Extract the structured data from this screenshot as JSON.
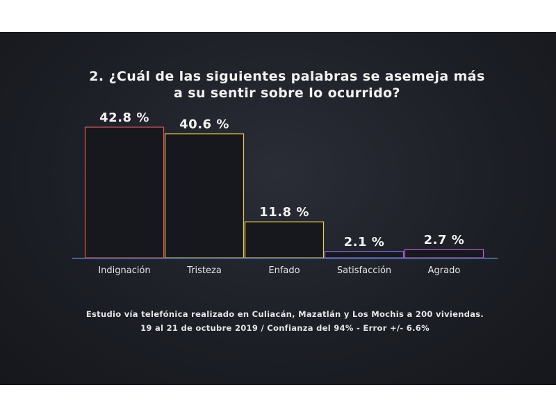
{
  "chart_data": {
    "type": "bar",
    "title_line1": "2. ¿Cuál de las siguientes palabras se asemeja más",
    "title_line2": "a su sentir sobre lo ocurrido?",
    "categories": [
      "Indignación",
      "Tristeza",
      "Enfado",
      "Satisfacción",
      "Agrado"
    ],
    "values": [
      42.8,
      40.6,
      11.8,
      2.1,
      2.7
    ],
    "value_labels": [
      "42.8 %",
      "40.6 %",
      "11.8 %",
      "2.1 %",
      "2.7 %"
    ],
    "bar_colors": [
      "#e8505b",
      "#e8c84a",
      "#e8d23a",
      "#8a6be8",
      "#c65ad6"
    ],
    "axis_color": "#5b8fd6",
    "ylim": [
      0,
      45
    ],
    "grid": false,
    "legend": "none"
  },
  "footer": {
    "line1": "Estudio vía telefónica realizado en Culiacán, Mazatlán y Los Mochis a 200 viviendas.",
    "line2": "19 al 21 de octubre 2019  /  Confianza del 94%  -  Error +/- 6.6%"
  }
}
